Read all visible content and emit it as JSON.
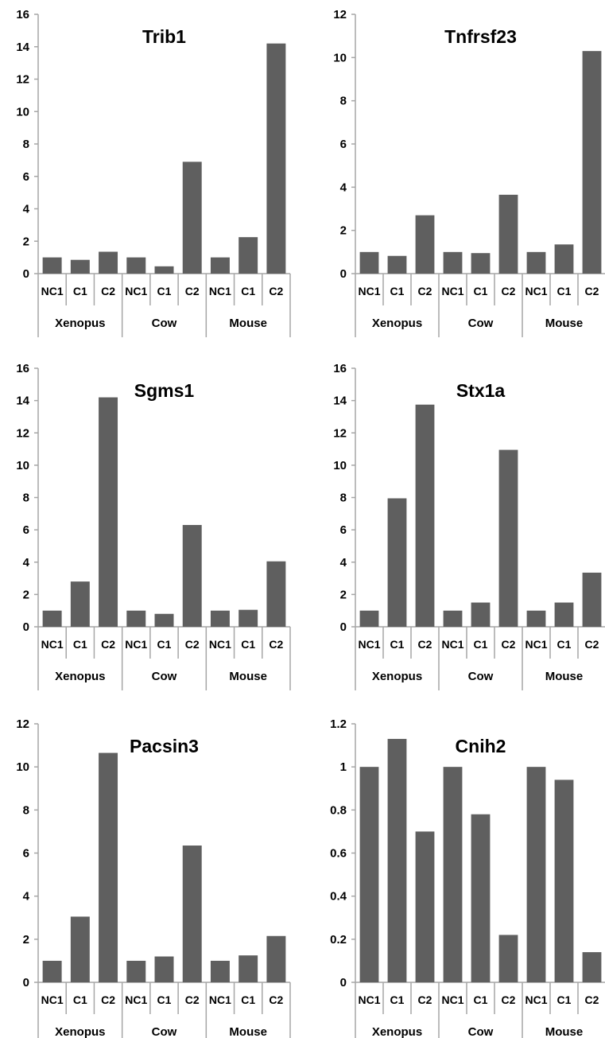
{
  "bar_color": "#5f5f5f",
  "axis_color": "#a6a6a6",
  "chart_data": [
    {
      "type": "bar",
      "title": "Trib1",
      "categories": [
        "NC1",
        "C1",
        "C2",
        "NC1",
        "C1",
        "C2",
        "NC1",
        "C1",
        "C2"
      ],
      "groups": [
        "Xenopus",
        "Cow",
        "Mouse"
      ],
      "values": [
        1,
        0.85,
        1.35,
        1,
        0.45,
        6.9,
        1,
        2.25,
        14.2
      ],
      "ylim": [
        0,
        16
      ],
      "yticks": [
        "0",
        "2",
        "4",
        "6",
        "8",
        "10",
        "12",
        "14",
        "16"
      ],
      "ytick_values": [
        0,
        2,
        4,
        6,
        8,
        10,
        12,
        14,
        16
      ],
      "xlabel": "",
      "ylabel": "",
      "grid": false,
      "legend": "none"
    },
    {
      "type": "bar",
      "title": "Tnfrsf23",
      "categories": [
        "NC1",
        "C1",
        "C2",
        "NC1",
        "C1",
        "C2",
        "NC1",
        "C1",
        "C2"
      ],
      "groups": [
        "Xenopus",
        "Cow",
        "Mouse"
      ],
      "values": [
        1,
        0.82,
        2.7,
        1,
        0.95,
        3.65,
        1,
        1.35,
        10.3
      ],
      "ylim": [
        0,
        12
      ],
      "yticks": [
        "0",
        "2",
        "4",
        "6",
        "8",
        "10",
        "12"
      ],
      "ytick_values": [
        0,
        2,
        4,
        6,
        8,
        10,
        12
      ],
      "xlabel": "",
      "ylabel": "",
      "grid": false,
      "legend": "none"
    },
    {
      "type": "bar",
      "title": "Sgms1",
      "categories": [
        "NC1",
        "C1",
        "C2",
        "NC1",
        "C1",
        "C2",
        "NC1",
        "C1",
        "C2"
      ],
      "groups": [
        "Xenopus",
        "Cow",
        "Mouse"
      ],
      "values": [
        1,
        2.8,
        14.2,
        1,
        0.8,
        6.3,
        1,
        1.05,
        4.05
      ],
      "ylim": [
        0,
        16
      ],
      "yticks": [
        "0",
        "2",
        "4",
        "6",
        "8",
        "10",
        "12",
        "14",
        "16"
      ],
      "ytick_values": [
        0,
        2,
        4,
        6,
        8,
        10,
        12,
        14,
        16
      ],
      "xlabel": "",
      "ylabel": "",
      "grid": false,
      "legend": "none"
    },
    {
      "type": "bar",
      "title": "Stx1a",
      "categories": [
        "NC1",
        "C1",
        "C2",
        "NC1",
        "C1",
        "C2",
        "NC1",
        "C1",
        "C2"
      ],
      "groups": [
        "Xenopus",
        "Cow",
        "Mouse"
      ],
      "values": [
        1,
        7.95,
        13.75,
        1,
        1.5,
        10.95,
        1,
        1.5,
        3.35
      ],
      "ylim": [
        0,
        16
      ],
      "yticks": [
        "0",
        "2",
        "4",
        "6",
        "8",
        "10",
        "12",
        "14",
        "16"
      ],
      "ytick_values": [
        0,
        2,
        4,
        6,
        8,
        10,
        12,
        14,
        16
      ],
      "xlabel": "",
      "ylabel": "",
      "grid": false,
      "legend": "none"
    },
    {
      "type": "bar",
      "title": "Pacsin3",
      "categories": [
        "NC1",
        "C1",
        "C2",
        "NC1",
        "C1",
        "C2",
        "NC1",
        "C1",
        "C2"
      ],
      "groups": [
        "Xenopus",
        "Cow",
        "Mouse"
      ],
      "values": [
        1,
        3.05,
        10.65,
        1,
        1.2,
        6.35,
        1,
        1.25,
        2.15
      ],
      "ylim": [
        0,
        12
      ],
      "yticks": [
        "0",
        "2",
        "4",
        "6",
        "8",
        "10",
        "12"
      ],
      "ytick_values": [
        0,
        2,
        4,
        6,
        8,
        10,
        12
      ],
      "xlabel": "",
      "ylabel": "",
      "grid": false,
      "legend": "none"
    },
    {
      "type": "bar",
      "title": "Cnih2",
      "categories": [
        "NC1",
        "C1",
        "C2",
        "NC1",
        "C1",
        "C2",
        "NC1",
        "C1",
        "C2"
      ],
      "groups": [
        "Xenopus",
        "Cow",
        "Mouse"
      ],
      "values": [
        1,
        1.13,
        0.7,
        1,
        0.78,
        0.22,
        1,
        0.94,
        0.14
      ],
      "ylim": [
        0,
        1.2
      ],
      "yticks": [
        "0",
        "0.2",
        "0.4",
        "0.6",
        "0.8",
        "1",
        "1.2"
      ],
      "ytick_values": [
        0,
        0.2,
        0.4,
        0.6,
        0.8,
        1,
        1.2
      ],
      "xlabel": "",
      "ylabel": "",
      "grid": false,
      "legend": "none"
    }
  ]
}
